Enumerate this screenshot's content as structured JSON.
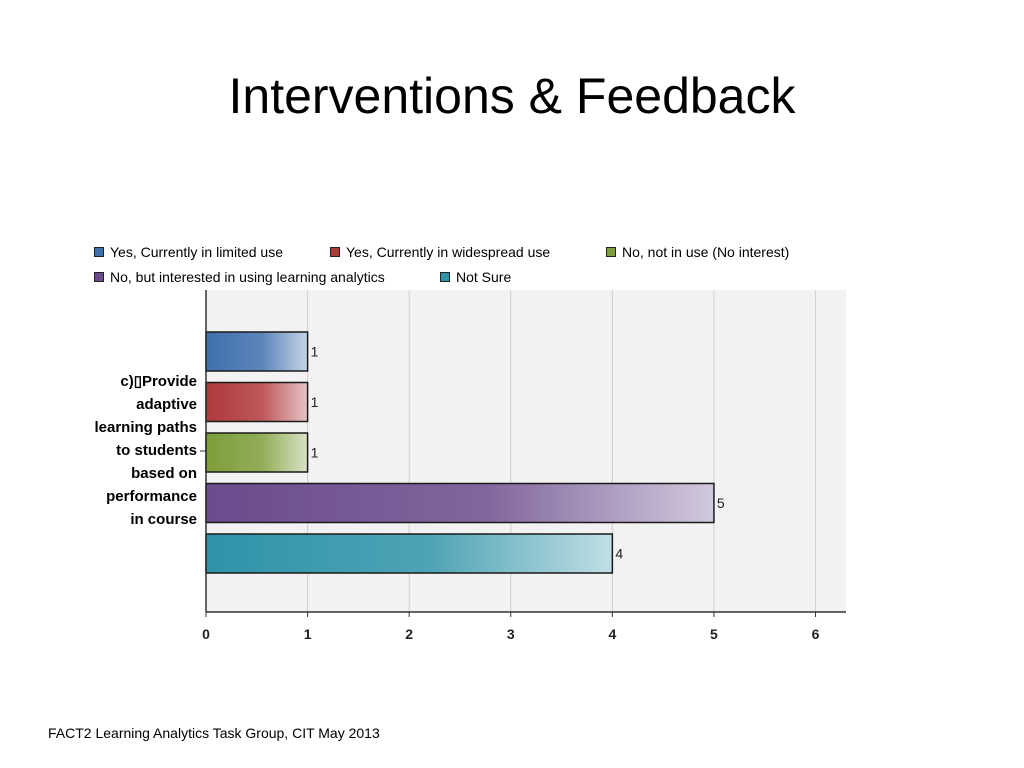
{
  "slide": {
    "title": "Interventions & Feedback",
    "footer": "FACT2 Learning Analytics Task Group, CIT May 2013"
  },
  "chart_data": {
    "type": "bar",
    "orientation": "horizontal",
    "title": "",
    "xlabel": "",
    "ylabel": "",
    "categories": [
      "c)▯Provide adaptive learning paths to students based on performance in course"
    ],
    "category_label_display": "c)▯Provide\nadaptive\nlearning paths\nto students\nbased on\nperformance\nin course",
    "series": [
      {
        "name": "Yes, Currently in limited use",
        "values": [
          1
        ],
        "color": "#3f6fae"
      },
      {
        "name": "Yes, Currently in widespread use",
        "values": [
          1
        ],
        "color": "#b0393c"
      },
      {
        "name": "No, not in use (No interest)",
        "values": [
          1
        ],
        "color": "#7d9e3a"
      },
      {
        "name": "No, but interested in using learning analytics",
        "values": [
          5
        ],
        "color": "#6a4b8c"
      },
      {
        "name": "Not Sure",
        "values": [
          4
        ],
        "color": "#2f93a8"
      }
    ],
    "xlim": [
      0,
      6.3
    ],
    "xticks": [
      0,
      1,
      2,
      3,
      4,
      5,
      6
    ],
    "grid": true,
    "legend_position": "top",
    "data_labels": true
  }
}
